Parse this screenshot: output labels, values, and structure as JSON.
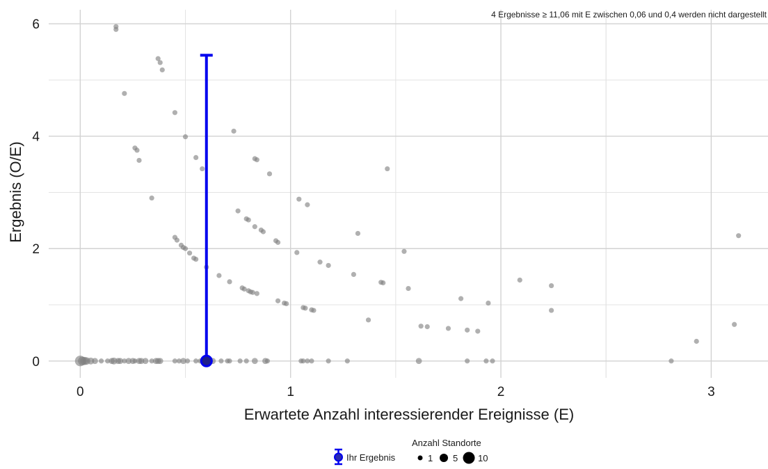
{
  "chart_data": {
    "type": "scatter",
    "title": "",
    "xlabel": "Erwartete Anzahl interessierender Ereignisse (E)",
    "ylabel": "Ergebnis (O/E)",
    "xlim": [
      -0.15,
      3.27
    ],
    "ylim": [
      -0.3,
      6.25
    ],
    "x_ticks": [
      0,
      1,
      2,
      3
    ],
    "x_tick_labels": [
      "0",
      "1",
      "2",
      "3"
    ],
    "y_ticks": [
      0,
      2,
      4,
      6
    ],
    "y_tick_labels": [
      "0",
      "2",
      "4",
      "6"
    ],
    "grid": true,
    "annotation": "4 Ergebnisse ≥ 11,06 mit E zwischen 0,06 und 0,4 werden nicht dargestellt",
    "point_color": "#7f7f7f",
    "highlight_color": "#0000ee",
    "series": [
      {
        "name": "Anzahl Standorte",
        "points": [
          {
            "x": 0.17,
            "y": 5.95,
            "n": 1
          },
          {
            "x": 0.17,
            "y": 5.9,
            "n": 1
          },
          {
            "x": 0.37,
            "y": 5.38,
            "n": 1
          },
          {
            "x": 0.38,
            "y": 5.31,
            "n": 1
          },
          {
            "x": 0.39,
            "y": 5.18,
            "n": 1
          },
          {
            "x": 0.21,
            "y": 4.76,
            "n": 1
          },
          {
            "x": 0.45,
            "y": 4.42,
            "n": 1
          },
          {
            "x": 0.73,
            "y": 4.09,
            "n": 1
          },
          {
            "x": 0.5,
            "y": 3.99,
            "n": 1
          },
          {
            "x": 0.26,
            "y": 3.79,
            "n": 1
          },
          {
            "x": 0.27,
            "y": 3.75,
            "n": 1
          },
          {
            "x": 0.55,
            "y": 3.62,
            "n": 1
          },
          {
            "x": 0.83,
            "y": 3.6,
            "n": 1
          },
          {
            "x": 0.84,
            "y": 3.58,
            "n": 1
          },
          {
            "x": 0.28,
            "y": 3.57,
            "n": 1
          },
          {
            "x": 0.58,
            "y": 3.42,
            "n": 1
          },
          {
            "x": 1.46,
            "y": 3.42,
            "n": 1
          },
          {
            "x": 0.9,
            "y": 3.33,
            "n": 1
          },
          {
            "x": 0.34,
            "y": 2.9,
            "n": 1
          },
          {
            "x": 1.04,
            "y": 2.88,
            "n": 1
          },
          {
            "x": 1.08,
            "y": 2.78,
            "n": 1
          },
          {
            "x": 0.75,
            "y": 2.67,
            "n": 1
          },
          {
            "x": 0.79,
            "y": 2.53,
            "n": 1
          },
          {
            "x": 0.8,
            "y": 2.51,
            "n": 1
          },
          {
            "x": 0.83,
            "y": 2.39,
            "n": 1
          },
          {
            "x": 0.86,
            "y": 2.33,
            "n": 1
          },
          {
            "x": 0.87,
            "y": 2.3,
            "n": 1
          },
          {
            "x": 1.32,
            "y": 2.27,
            "n": 1
          },
          {
            "x": 3.13,
            "y": 2.23,
            "n": 1
          },
          {
            "x": 0.45,
            "y": 2.2,
            "n": 1
          },
          {
            "x": 0.46,
            "y": 2.15,
            "n": 1
          },
          {
            "x": 0.93,
            "y": 2.14,
            "n": 1
          },
          {
            "x": 0.94,
            "y": 2.11,
            "n": 1
          },
          {
            "x": 0.48,
            "y": 2.06,
            "n": 1
          },
          {
            "x": 0.49,
            "y": 2.02,
            "n": 1
          },
          {
            "x": 0.5,
            "y": 2.0,
            "n": 1
          },
          {
            "x": 1.54,
            "y": 1.95,
            "n": 1
          },
          {
            "x": 0.52,
            "y": 1.92,
            "n": 1
          },
          {
            "x": 1.03,
            "y": 1.93,
            "n": 1
          },
          {
            "x": 0.54,
            "y": 1.83,
            "n": 1
          },
          {
            "x": 0.55,
            "y": 1.81,
            "n": 1
          },
          {
            "x": 1.14,
            "y": 1.76,
            "n": 1
          },
          {
            "x": 1.18,
            "y": 1.7,
            "n": 1
          },
          {
            "x": 0.6,
            "y": 1.67,
            "n": 1
          },
          {
            "x": 0.66,
            "y": 1.52,
            "n": 1
          },
          {
            "x": 1.3,
            "y": 1.54,
            "n": 1
          },
          {
            "x": 2.09,
            "y": 1.44,
            "n": 1
          },
          {
            "x": 0.71,
            "y": 1.41,
            "n": 1
          },
          {
            "x": 1.43,
            "y": 1.4,
            "n": 1
          },
          {
            "x": 1.44,
            "y": 1.39,
            "n": 1
          },
          {
            "x": 2.24,
            "y": 1.34,
            "n": 1
          },
          {
            "x": 0.77,
            "y": 1.3,
            "n": 1
          },
          {
            "x": 0.78,
            "y": 1.28,
            "n": 1
          },
          {
            "x": 1.56,
            "y": 1.29,
            "n": 1
          },
          {
            "x": 0.8,
            "y": 1.25,
            "n": 1
          },
          {
            "x": 0.81,
            "y": 1.23,
            "n": 1
          },
          {
            "x": 0.82,
            "y": 1.22,
            "n": 1
          },
          {
            "x": 0.84,
            "y": 1.2,
            "n": 1
          },
          {
            "x": 1.81,
            "y": 1.11,
            "n": 1
          },
          {
            "x": 0.94,
            "y": 1.07,
            "n": 1
          },
          {
            "x": 0.97,
            "y": 1.03,
            "n": 1
          },
          {
            "x": 0.98,
            "y": 1.02,
            "n": 1
          },
          {
            "x": 1.94,
            "y": 1.03,
            "n": 1
          },
          {
            "x": 1.06,
            "y": 0.95,
            "n": 1
          },
          {
            "x": 1.07,
            "y": 0.94,
            "n": 1
          },
          {
            "x": 1.1,
            "y": 0.91,
            "n": 1
          },
          {
            "x": 1.11,
            "y": 0.9,
            "n": 1
          },
          {
            "x": 2.24,
            "y": 0.9,
            "n": 1
          },
          {
            "x": 1.37,
            "y": 0.73,
            "n": 1
          },
          {
            "x": 3.11,
            "y": 0.65,
            "n": 1
          },
          {
            "x": 1.62,
            "y": 0.62,
            "n": 1
          },
          {
            "x": 1.65,
            "y": 0.61,
            "n": 1
          },
          {
            "x": 1.75,
            "y": 0.58,
            "n": 1
          },
          {
            "x": 1.84,
            "y": 0.55,
            "n": 1
          },
          {
            "x": 1.89,
            "y": 0.53,
            "n": 1
          },
          {
            "x": 2.93,
            "y": 0.35,
            "n": 1
          },
          {
            "x": 0.0,
            "y": 0,
            "n": 10
          },
          {
            "x": 0.01,
            "y": 0,
            "n": 6
          },
          {
            "x": 0.02,
            "y": 0,
            "n": 5
          },
          {
            "x": 0.03,
            "y": 0,
            "n": 4
          },
          {
            "x": 0.05,
            "y": 0,
            "n": 3
          },
          {
            "x": 0.07,
            "y": 0,
            "n": 2
          },
          {
            "x": 0.1,
            "y": 0,
            "n": 1
          },
          {
            "x": 0.13,
            "y": 0,
            "n": 1
          },
          {
            "x": 0.15,
            "y": 0,
            "n": 2
          },
          {
            "x": 0.16,
            "y": 0,
            "n": 3
          },
          {
            "x": 0.18,
            "y": 0,
            "n": 2
          },
          {
            "x": 0.19,
            "y": 0,
            "n": 2
          },
          {
            "x": 0.21,
            "y": 0,
            "n": 1
          },
          {
            "x": 0.23,
            "y": 0,
            "n": 2
          },
          {
            "x": 0.25,
            "y": 0,
            "n": 2
          },
          {
            "x": 0.26,
            "y": 0,
            "n": 1
          },
          {
            "x": 0.28,
            "y": 0,
            "n": 2
          },
          {
            "x": 0.29,
            "y": 0,
            "n": 2
          },
          {
            "x": 0.31,
            "y": 0,
            "n": 2
          },
          {
            "x": 0.34,
            "y": 0,
            "n": 1
          },
          {
            "x": 0.36,
            "y": 0,
            "n": 2
          },
          {
            "x": 0.37,
            "y": 0,
            "n": 2
          },
          {
            "x": 0.38,
            "y": 0,
            "n": 2
          },
          {
            "x": 0.45,
            "y": 0,
            "n": 1
          },
          {
            "x": 0.47,
            "y": 0,
            "n": 1
          },
          {
            "x": 0.49,
            "y": 0,
            "n": 2
          },
          {
            "x": 0.51,
            "y": 0,
            "n": 1
          },
          {
            "x": 0.55,
            "y": 0,
            "n": 1
          },
          {
            "x": 0.57,
            "y": 0,
            "n": 1
          },
          {
            "x": 0.58,
            "y": 0,
            "n": 1
          },
          {
            "x": 0.62,
            "y": 0,
            "n": 1
          },
          {
            "x": 0.63,
            "y": 0,
            "n": 2
          },
          {
            "x": 0.67,
            "y": 0,
            "n": 1
          },
          {
            "x": 0.7,
            "y": 0,
            "n": 1
          },
          {
            "x": 0.71,
            "y": 0,
            "n": 1
          },
          {
            "x": 0.76,
            "y": 0,
            "n": 1
          },
          {
            "x": 0.79,
            "y": 0,
            "n": 1
          },
          {
            "x": 0.83,
            "y": 0,
            "n": 2
          },
          {
            "x": 0.88,
            "y": 0,
            "n": 2
          },
          {
            "x": 0.89,
            "y": 0,
            "n": 1
          },
          {
            "x": 1.05,
            "y": 0,
            "n": 1
          },
          {
            "x": 1.06,
            "y": 0,
            "n": 1
          },
          {
            "x": 1.08,
            "y": 0,
            "n": 1
          },
          {
            "x": 1.1,
            "y": 0,
            "n": 1
          },
          {
            "x": 1.18,
            "y": 0,
            "n": 1
          },
          {
            "x": 1.27,
            "y": 0,
            "n": 1
          },
          {
            "x": 1.61,
            "y": 0,
            "n": 2
          },
          {
            "x": 1.84,
            "y": 0,
            "n": 1
          },
          {
            "x": 1.93,
            "y": 0,
            "n": 1
          },
          {
            "x": 1.96,
            "y": 0,
            "n": 1
          },
          {
            "x": 2.81,
            "y": 0,
            "n": 1
          }
        ]
      }
    ],
    "highlight": {
      "name": "Ihr Ergebnis",
      "x": 0.6,
      "y": 0,
      "ci_low": 0,
      "ci_high": 5.44
    },
    "legend": {
      "placement": "bottom",
      "highlight_label": "Ihr Ergebnis",
      "size_title": "Anzahl Standorte",
      "size_items": [
        {
          "n": 1,
          "label": "1"
        },
        {
          "n": 5,
          "label": "5"
        },
        {
          "n": 10,
          "label": "10"
        }
      ]
    }
  }
}
